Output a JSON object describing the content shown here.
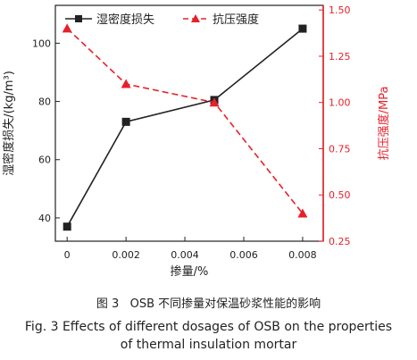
{
  "chart_data": {
    "type": "line",
    "x": [
      0,
      0.002,
      0.005,
      0.008
    ],
    "x_ticks": [
      "0",
      "0.002",
      "0.004",
      "0.006",
      "0.008"
    ],
    "xlim": [
      -0.0004,
      0.0087
    ],
    "xlabel": "掺量/%",
    "series": [
      {
        "name": "湿密度损失",
        "axis": "left",
        "color": "#222222",
        "marker": "square",
        "values": [
          37,
          73,
          80.5,
          105
        ]
      },
      {
        "name": "抗压强度",
        "axis": "right",
        "color": "#e8202a",
        "marker": "triangle",
        "values": [
          1.4,
          1.1,
          1.0,
          0.4
        ]
      }
    ],
    "y_left": {
      "label": "湿密度损失/(kg/m³)",
      "ticks": [
        "40",
        "60",
        "80",
        "100"
      ],
      "ylim": [
        32,
        113
      ]
    },
    "y_right": {
      "label": "抗压强度/MPa",
      "ticks": [
        "0.25",
        "0.50",
        "0.75",
        "1.00",
        "1.25",
        "1.50"
      ],
      "ylim": [
        0.25,
        1.525
      ]
    },
    "grid": false,
    "legend_position": "top"
  },
  "caption": {
    "zh": "图 3   OSB 不同掺量对保温砂浆性能的影响",
    "en_line1": "Fig. 3   Effects of different dosages of OSB on the properties",
    "en_line2": "of thermal insulation mortar"
  }
}
